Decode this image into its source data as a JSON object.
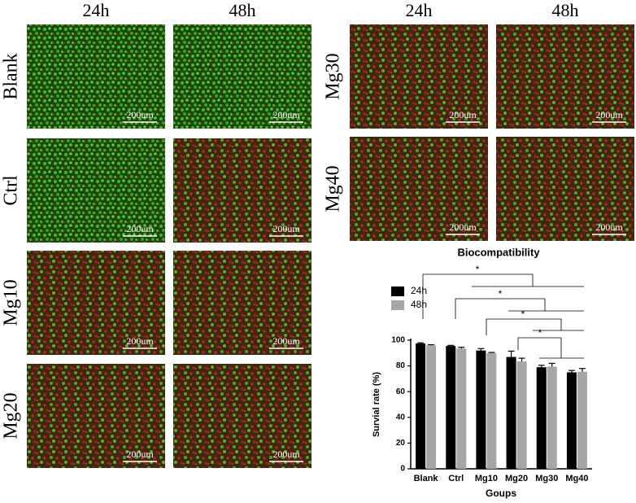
{
  "figure": {
    "column_headers": [
      "24h",
      "48h",
      "24h",
      "48h"
    ],
    "row_labels": [
      "Blank",
      "Ctrl",
      "Mg10",
      "Mg20",
      "Mg30",
      "Mg40"
    ],
    "scale_bars": [
      "200um",
      "200um",
      "200um",
      "200um",
      "200um",
      "200um",
      "200um",
      "200um",
      "200um",
      "200um",
      "200um",
      "200um"
    ]
  },
  "chart_data": {
    "type": "bar",
    "title": "Biocompatibility",
    "x_label": "Goups",
    "y_label": "Survial rate (%)",
    "categories": [
      "Blank",
      "Ctrl",
      "Mg10",
      "Mg20",
      "Mg30",
      "Mg40"
    ],
    "series": [
      {
        "name": "24h",
        "color": "#000000",
        "values": [
          97.5,
          95.5,
          92,
          87,
          79,
          75
        ],
        "errors": [
          0.5,
          0.5,
          1.5,
          4.5,
          1.5,
          1.5
        ]
      },
      {
        "name": "48h",
        "color": "#a6a6a6",
        "values": [
          96,
          93.5,
          90,
          83.5,
          79.5,
          75.5
        ],
        "errors": [
          0.5,
          1,
          0.5,
          2.5,
          2.5,
          2.5
        ]
      }
    ],
    "ylim": [
      0,
      100
    ],
    "yticks": [
      0,
      20,
      40,
      60,
      80,
      100
    ],
    "legend": "top-left",
    "annotations": [
      "*",
      "*",
      "*",
      "*"
    ]
  }
}
